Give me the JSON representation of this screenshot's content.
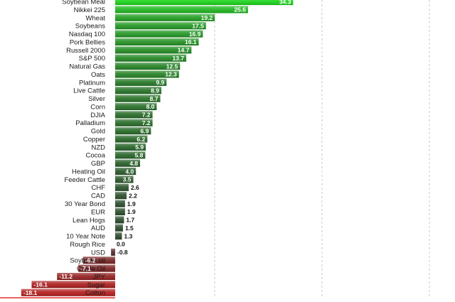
{
  "chart_data": {
    "type": "bar",
    "orientation": "horizontal",
    "title": "",
    "xlabel": "",
    "ylabel": "",
    "xlim": [
      -40,
      55
    ],
    "grid": true,
    "categories": [
      "Soybean Meal",
      "Nikkei 225",
      "Wheat",
      "Soybeans",
      "Nasdaq 100",
      "Pork Bellies",
      "Russell 2000",
      "S&P 500",
      "Natural Gas",
      "Oats",
      "Platinum",
      "Live Cattle",
      "Silver",
      "Corn",
      "DJIA",
      "Palladium",
      "Gold",
      "Copper",
      "NZD",
      "Cocoa",
      "GBP",
      "Heating Oil",
      "Feeder Cattle",
      "CHF",
      "CAD",
      "30 Year Bond",
      "EUR",
      "Lean Hogs",
      "AUD",
      "10 Year Note",
      "Rough Rice",
      "USD",
      "Soybean oil",
      "Crude Oil",
      "JPY",
      "Sugar",
      "Cotton",
      ""
    ],
    "values": [
      34.3,
      25.6,
      19.2,
      17.5,
      16.9,
      16.1,
      14.7,
      13.7,
      12.5,
      12.3,
      9.9,
      8.9,
      8.7,
      8.0,
      7.2,
      7.2,
      6.9,
      6.2,
      5.9,
      5.8,
      4.8,
      4.0,
      3.5,
      2.6,
      2.2,
      1.9,
      1.9,
      1.7,
      1.5,
      1.3,
      0.0,
      -0.8,
      -6.2,
      -7.1,
      -11.2,
      -16.1,
      -18.1,
      -29.0
    ],
    "labels": [
      "34.3",
      "25.6",
      "19.2",
      "17.5",
      "16.9",
      "16.1",
      "14.7",
      "13.7",
      "12.5",
      "12.3",
      "9.9",
      "8.9",
      "8.7",
      "8.0",
      "7.2",
      "7.2",
      "6.9",
      "6.2",
      "5.9",
      "5.8",
      "4.8",
      "4.0",
      "3.5",
      "2.6",
      "2.2",
      "1.9",
      "1.9",
      "1.7",
      "1.5",
      "1.3",
      "0.0",
      "-0.8",
      "-6.2",
      "-7.1",
      "-11.2",
      "-16.1",
      "-18.1",
      ""
    ],
    "colors": {
      "positive_top": "#19d419",
      "positive_bottom": "#2b3a2c",
      "negative_top": "#4a2a2a",
      "negative_bottom": "#e01414"
    }
  }
}
